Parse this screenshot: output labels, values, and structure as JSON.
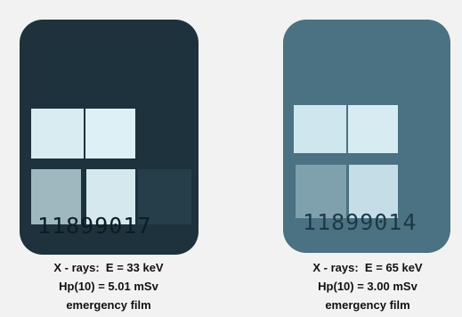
{
  "films": [
    {
      "number": "11899017",
      "caption": [
        "X - rays:  E = 33 keV",
        "Hp(10) = 5.01 mSv",
        "emergency film"
      ]
    },
    {
      "number": "11899014",
      "caption": [
        "X - rays:  E = 65 keV",
        "Hp(10) = 3.00 mSv",
        "emergency film"
      ]
    }
  ]
}
